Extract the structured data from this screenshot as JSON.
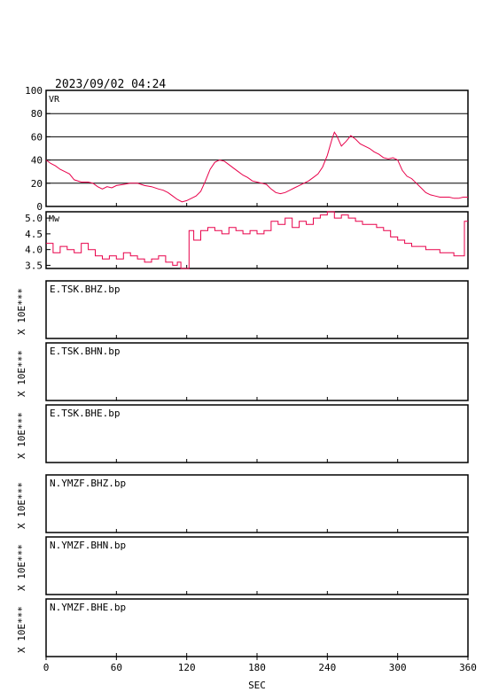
{
  "timestamp": "2023/09/02 04:24",
  "colors": {
    "trace": "#e8004a",
    "frame": "#000000",
    "grid": "#000000"
  },
  "chart_data": [
    {
      "type": "line",
      "name": "vr-panel",
      "label": "VR",
      "xlim": [
        0,
        360
      ],
      "ylim": [
        0,
        100
      ],
      "yticks": [
        "0",
        "20",
        "40",
        "60",
        "80",
        "100"
      ],
      "ytick_values": [
        0,
        20,
        40,
        60,
        80,
        100
      ],
      "grid": true,
      "x": [
        0,
        4,
        8,
        12,
        16,
        20,
        24,
        30,
        36,
        40,
        44,
        48,
        52,
        56,
        60,
        66,
        72,
        78,
        84,
        90,
        96,
        100,
        104,
        108,
        112,
        116,
        120,
        124,
        128,
        132,
        136,
        140,
        144,
        148,
        152,
        156,
        160,
        164,
        168,
        172,
        176,
        180,
        184,
        188,
        192,
        196,
        200,
        204,
        208,
        212,
        216,
        220,
        224,
        228,
        232,
        236,
        240,
        244,
        246,
        248,
        252,
        256,
        260,
        264,
        268,
        272,
        276,
        280,
        284,
        288,
        292,
        296,
        300,
        304,
        308,
        312,
        316,
        320,
        324,
        328,
        332,
        336,
        340,
        344,
        348,
        352,
        356,
        360
      ],
      "y": [
        40,
        37,
        35,
        32,
        30,
        28,
        23,
        21,
        21,
        20,
        17,
        15,
        17,
        16,
        18,
        19,
        20,
        20,
        18,
        17,
        15,
        14,
        12,
        9,
        6,
        4,
        5,
        7,
        9,
        13,
        22,
        32,
        38,
        40,
        39,
        36,
        33,
        30,
        27,
        25,
        22,
        21,
        20,
        19,
        15,
        12,
        11,
        12,
        14,
        16,
        18,
        20,
        22,
        25,
        28,
        34,
        44,
        58,
        64,
        61,
        52,
        56,
        61,
        58,
        54,
        52,
        50,
        47,
        45,
        42,
        41,
        42,
        40,
        31,
        26,
        24,
        20,
        16,
        12,
        10,
        9,
        8,
        8,
        8,
        7,
        7,
        8,
        8
      ]
    },
    {
      "type": "line",
      "name": "mw-panel",
      "label": "Mw",
      "xlim": [
        0,
        360
      ],
      "ylim": [
        3.4,
        5.2
      ],
      "yticks": [
        "3.5",
        "4.0",
        "4.5",
        "5.0"
      ],
      "ytick_values": [
        3.5,
        4.0,
        4.5,
        5.0
      ],
      "grid": false,
      "x": [
        0,
        6,
        12,
        18,
        24,
        30,
        36,
        42,
        48,
        54,
        60,
        66,
        72,
        78,
        84,
        90,
        96,
        102,
        108,
        112,
        115,
        118,
        120,
        122,
        126,
        132,
        138,
        144,
        150,
        156,
        162,
        168,
        174,
        180,
        186,
        192,
        198,
        204,
        210,
        216,
        222,
        228,
        234,
        240,
        246,
        252,
        258,
        264,
        270,
        276,
        282,
        288,
        294,
        300,
        306,
        312,
        318,
        324,
        330,
        336,
        342,
        348,
        354,
        357,
        360
      ],
      "y": [
        4.2,
        3.9,
        4.1,
        4.0,
        3.9,
        4.2,
        4.0,
        3.8,
        3.7,
        3.8,
        3.7,
        3.9,
        3.8,
        3.7,
        3.6,
        3.7,
        3.8,
        3.6,
        3.5,
        3.6,
        3.4,
        3.3,
        3.4,
        4.6,
        4.3,
        4.6,
        4.7,
        4.6,
        4.5,
        4.7,
        4.6,
        4.5,
        4.6,
        4.5,
        4.6,
        4.9,
        4.8,
        5.0,
        4.7,
        4.9,
        4.8,
        5.0,
        5.1,
        5.2,
        5.0,
        5.1,
        5.0,
        4.9,
        4.8,
        4.8,
        4.7,
        4.6,
        4.4,
        4.3,
        4.2,
        4.1,
        4.1,
        4.0,
        4.0,
        3.9,
        3.9,
        3.8,
        3.8,
        4.9,
        4.9
      ]
    }
  ],
  "traces": [
    {
      "label": "E.TSK.BHZ.bp",
      "unit": "X 10E***"
    },
    {
      "label": "E.TSK.BHN.bp",
      "unit": "X 10E***"
    },
    {
      "label": "E.TSK.BHE.bp",
      "unit": "X 10E***"
    },
    {
      "label": "N.YMZF.BHZ.bp",
      "unit": "X 10E***"
    },
    {
      "label": "N.YMZF.BHN.bp",
      "unit": "X 10E***"
    },
    {
      "label": "N.YMZF.BHE.bp",
      "unit": "X 10E***"
    }
  ],
  "xaxis": {
    "label": "SEC",
    "ticks": [
      "0",
      "60",
      "120",
      "180",
      "240",
      "300",
      "360"
    ],
    "tick_values": [
      0,
      60,
      120,
      180,
      240,
      300,
      360
    ]
  }
}
